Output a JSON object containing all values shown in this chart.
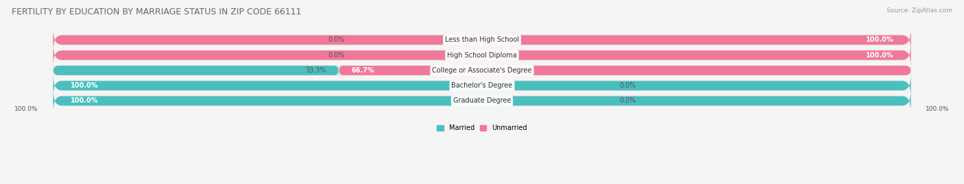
{
  "title": "FERTILITY BY EDUCATION BY MARRIAGE STATUS IN ZIP CODE 66111",
  "source": "Source: ZipAtlas.com",
  "categories": [
    "Less than High School",
    "High School Diploma",
    "College or Associate's Degree",
    "Bachelor's Degree",
    "Graduate Degree"
  ],
  "married": [
    0.0,
    0.0,
    33.3,
    100.0,
    100.0
  ],
  "unmarried": [
    100.0,
    100.0,
    66.7,
    0.0,
    0.0
  ],
  "married_color": "#4bbfbf",
  "unmarried_color": "#f07898",
  "bar_bg_color": "#e0e0e0",
  "bar_outer_color": "#ebebeb",
  "fig_bg_color": "#f5f5f5",
  "title_fontsize": 9,
  "label_fontsize": 7,
  "axis_label_fontsize": 6.5,
  "legend_fontsize": 7,
  "x_left_label": "100.0%",
  "x_right_label": "100.0%"
}
